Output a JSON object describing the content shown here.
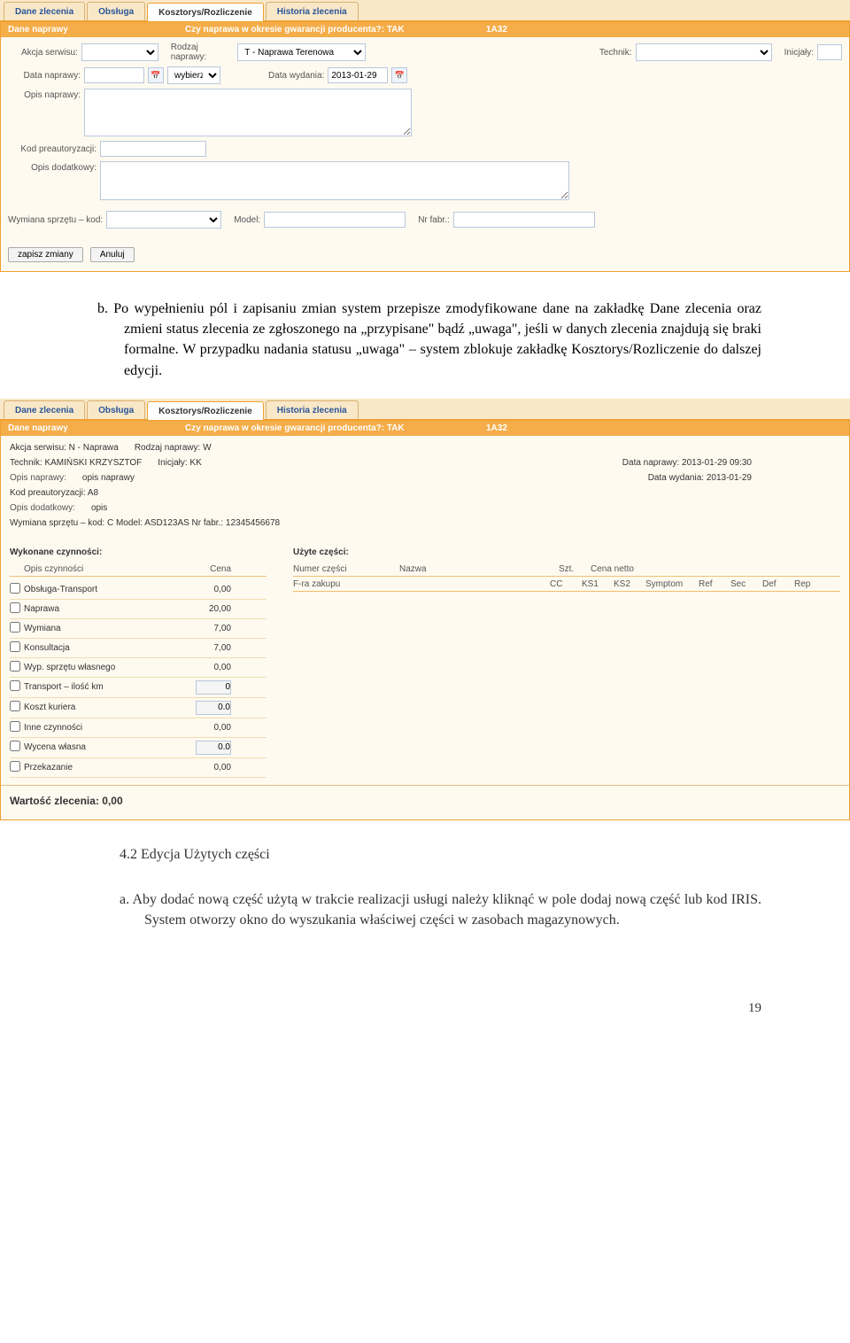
{
  "tabs": {
    "t1": "Dane zlecenia",
    "t2": "Obsługa",
    "t3": "Kosztorys/Rozliczenie",
    "t4": "Historia zlecenia"
  },
  "form1": {
    "header": {
      "a": "Dane naprawy",
      "b": "Czy naprawa w okresie gwarancji producenta?: TAK",
      "c": "1A32"
    },
    "labels": {
      "akcja": "Akcja serwisu:",
      "rodzaj": "Rodzaj naprawy:",
      "rodzaj_val": "T - Naprawa Terenowa",
      "technik": "Technik:",
      "inicjaly": "Inicjały:",
      "data_naprawy": "Data naprawy:",
      "wybierz": "wybierz",
      "data_wydania": "Data wydania:",
      "data_wydania_val": "2013-01-29",
      "opis_naprawy": "Opis naprawy:",
      "kod_pre": "Kod preautoryzacji:",
      "opis_dod": "Opis dodatkowy:",
      "wymiana": "Wymiana sprzętu – kod:",
      "model": "Model:",
      "nrfabr": "Nr fabr.:",
      "zapisz": "zapisz zmiany",
      "anuluj": "Anuluj"
    }
  },
  "para1": {
    "text": "b.  Po wypełnieniu pól i zapisaniu zmian system przepisze zmodyfikowane dane na zakładkę Dane zlecenia oraz zmieni status zlecenia ze zgłoszonego na „przypisane\" bądź „uwaga\", jeśli w danych zlecenia znajdują się braki formalne. W przypadku nadania statusu „uwaga\" – system zblokuje zakładkę Kosztorys/Rozliczenie do dalszej edycji."
  },
  "ro": {
    "akcja": "Akcja serwisu: N - Naprawa",
    "rodzaj": "Rodzaj naprawy: W",
    "technik": "Technik:   KAMIŃSKI KRZYSZTOF",
    "inicjaly": "Inicjały: KK",
    "data_nap": "Data naprawy: 2013-01-29 09:30",
    "opis_nap_l": "Opis naprawy:",
    "opis_nap_v": "opis naprawy",
    "data_wyd": "Data wydania: 2013-01-29",
    "kod_pre": "Kod preautoryzacji: A8",
    "opis_dod_l": "Opis dodatkowy:",
    "opis_dod_v": "opis",
    "wymiana": "Wymiana sprzętu – kod: C    Model: ASD123AS    Nr fabr.: 12345456678"
  },
  "activities": {
    "title": "Wykonane czynności:",
    "head_opis": "Opis czynności",
    "head_cena": "Cena",
    "rows": [
      {
        "name": "Obsługa-Transport",
        "price": "0,00"
      },
      {
        "name": "Naprawa",
        "price": "20,00"
      },
      {
        "name": "Wymiana",
        "price": "7,00"
      },
      {
        "name": "Konsultacja",
        "price": "7,00"
      },
      {
        "name": "Wyp. sprzętu własnego",
        "price": "0,00"
      },
      {
        "name": "Transport – ilość km",
        "price_input": "0"
      },
      {
        "name": "Koszt kuriera",
        "price_input": "0.0"
      },
      {
        "name": "Inne czynności",
        "price": "0,00"
      },
      {
        "name": "Wycena własna",
        "price_input": "0.0"
      },
      {
        "name": "Przekazanie",
        "price": "0,00"
      }
    ]
  },
  "parts": {
    "title": "Użyte części:",
    "head": {
      "num": "Numer części",
      "name": "Nazwa",
      "szt": "Szt.",
      "cena": "Cena netto",
      "fra": "F-ra zakupu",
      "cc": "CC",
      "ks1": "KS1",
      "ks2": "KS2",
      "sym": "Symptom",
      "ref": "Ref",
      "sec": "Sec",
      "def": "Def",
      "rep": "Rep"
    }
  },
  "total_label": "Wartość zlecenia",
  "total_value": ": 0,00",
  "subheading": "4.2 Edycja Użytych części",
  "para2": "a.   Aby dodać nową część użytą w trakcie realizacji usługi należy kliknąć w pole dodaj nową część lub kod IRIS. System otworzy okno do wyszukania właściwej części w zasobach magazynowych.",
  "pagenum": "19"
}
